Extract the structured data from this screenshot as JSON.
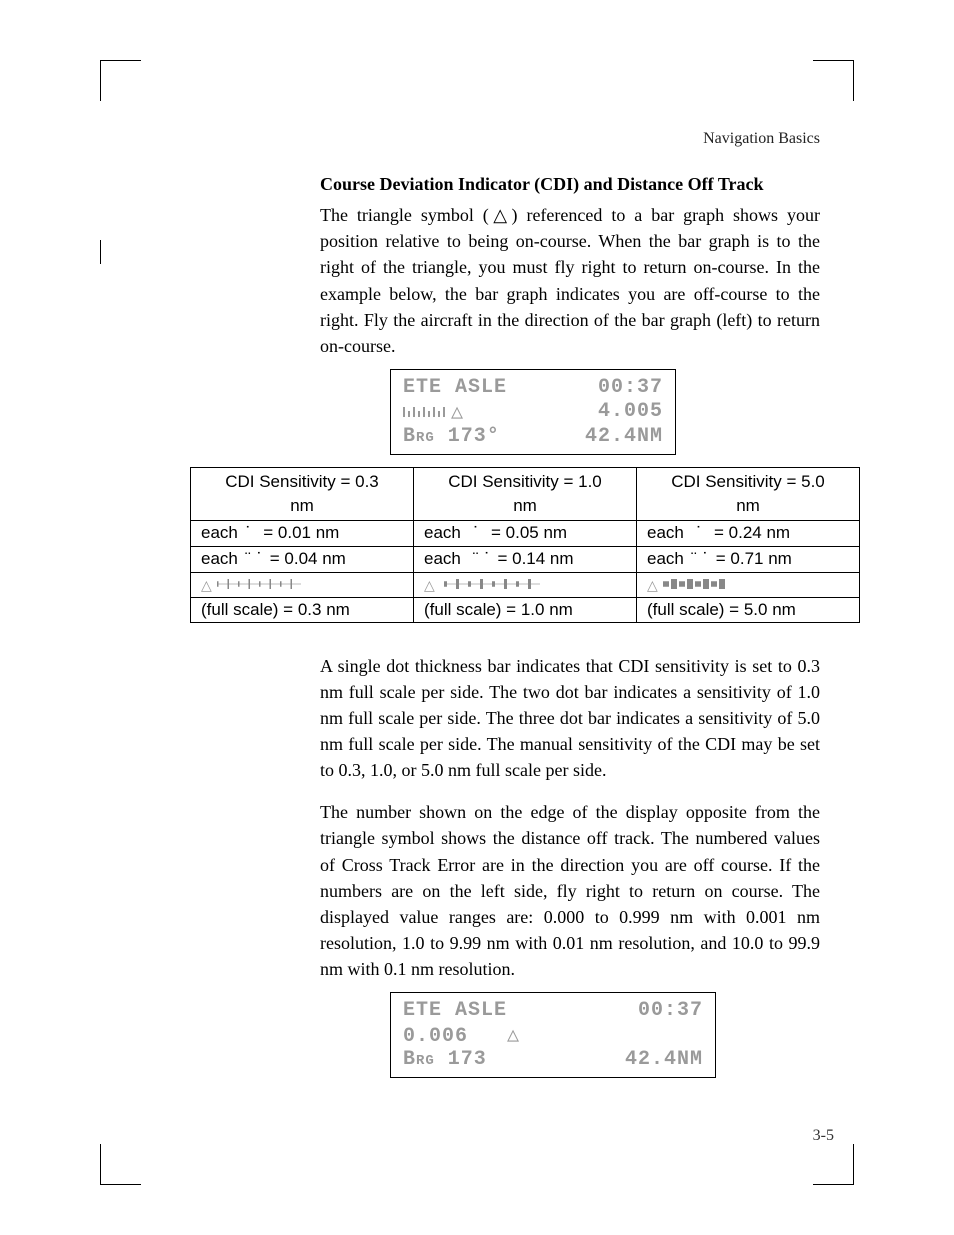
{
  "header": {
    "right_label": "Navigation Basics"
  },
  "section": {
    "title": "Course Deviation Indicator (CDI) and Distance Off Track",
    "para1": "The triangle symbol (△) referenced to a bar graph shows your position relative to being on-course. When the bar graph is to the right of the triangle, you must fly right to return on-course. In the example below, the bar graph indicates you are off-course to the right. Fly the aircraft in the direction of the bar graph (left) to return on-course.",
    "para2": "A single dot thickness bar indicates that CDI sensitivity is set to 0.3 nm full scale per side. The two dot bar indicates a sensitivity of 1.0 nm full scale per side. The three dot bar indicates a sensitivity of 5.0 nm full scale per side. The manual sensitivity of the CDI may be set to 0.3, 1.0, or 5.0 nm full scale per side.",
    "para3": "The number shown on the edge of the display opposite from the triangle symbol shows the distance off track. The numbered values of Cross Track Error are in the direction you are off course. If the numbers are on the left side, fly right to return on course. The displayed value ranges are: 0.000 to 0.999 nm with 0.001 nm resolution, 1.0 to 9.99 nm with 0.01 nm resolution, and 10.0 to 99.9 nm with 0.1 nm resolution."
  },
  "lcd1": {
    "row1_left": "ETE ASLE",
    "row1_right": "00:37",
    "row2_right": "4.005",
    "row3_left": "Brg 173°",
    "row3_right": "42.4NM",
    "triangle": "△",
    "bars_heights": [
      10,
      6,
      10,
      6,
      10,
      6,
      10,
      6,
      10
    ]
  },
  "lcd2": {
    "row1_left": "ETE ASLE",
    "row1_right": "00:37",
    "row2_left": "0.006",
    "row2_tri": "△",
    "row3_left": "Brg 173",
    "row3_right": "42.4NM"
  },
  "sens_table": {
    "cols": [
      "0.3",
      "1.0",
      "5.0"
    ],
    "header_prefix": "CDI Sensitivity = ",
    "unit": "nm",
    "row_each_dot_label": "each",
    "dot1_marks": [
      "˙",
      "˙",
      "˙"
    ],
    "dot1_vals": [
      "0.01 nm",
      "0.05 nm",
      "0.24 nm"
    ],
    "dot2_marks": [
      "¨˙",
      "¨˙",
      "¨˙"
    ],
    "dot2_vals": [
      "0.04 nm",
      "0.14 nm",
      "0.71 nm"
    ],
    "full_label": "(full scale) = ",
    "full_vals": [
      "0.3 nm",
      "1.0 nm",
      "5.0 nm"
    ],
    "bar_cfg": [
      {
        "tri_left": true,
        "n": 8,
        "bw": 1.5,
        "gap": 3,
        "dash": true
      },
      {
        "tri_left": true,
        "n": 8,
        "bw": 3,
        "gap": 3,
        "dash": true
      },
      {
        "tri_left": true,
        "n": 8,
        "bw": 6,
        "gap": 2,
        "dash": false
      }
    ]
  },
  "page_num": "3-5",
  "colors": {
    "text": "#000000",
    "lcd": "#9a9a9a",
    "bg": "#ffffff"
  }
}
